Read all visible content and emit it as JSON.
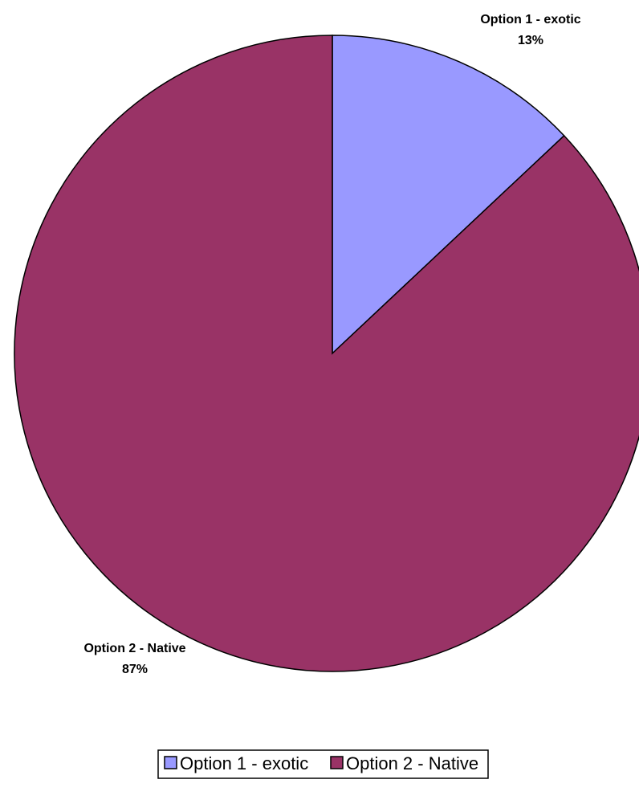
{
  "chart_data": {
    "type": "pie",
    "title": "",
    "slices": [
      {
        "label": "Option 1 - exotic",
        "value": 13,
        "percent_label": "13%",
        "color": "#9999FF"
      },
      {
        "label": "Option 2 - Native",
        "value": 87,
        "percent_label": "87%",
        "color": "#993366"
      }
    ],
    "legend": {
      "placement": "bottom",
      "entries": [
        "Option 1 - exotic",
        "Option 2 - Native"
      ]
    },
    "start_angle": "12 o'clock",
    "direction": "clockwise"
  }
}
